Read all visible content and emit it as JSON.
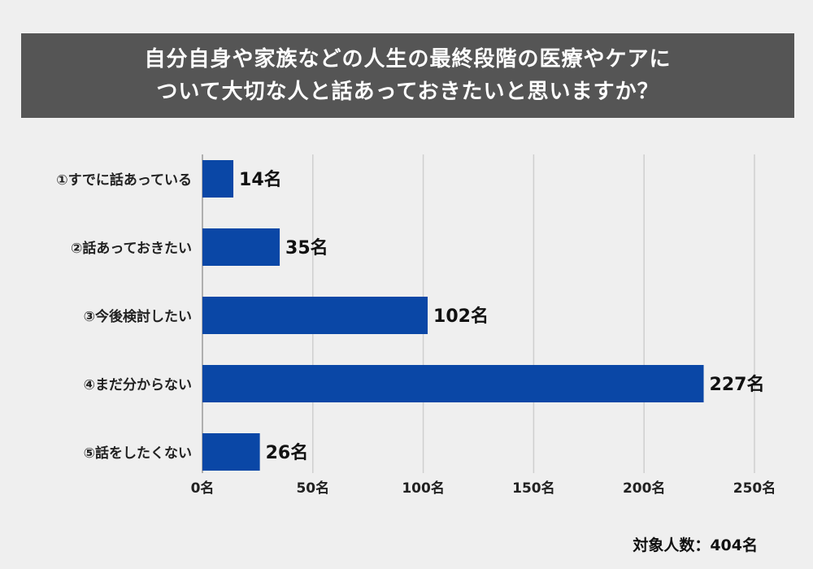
{
  "title": {
    "line1": "自分自身や家族などの人生の最終段階の医療やケアに",
    "line2": "ついて大切な人と話あっておきたいと思いますか？"
  },
  "chart_data": {
    "type": "bar",
    "orientation": "horizontal",
    "categories": [
      "①すでに話あっている",
      "②話あっておきたい",
      "③今後検討したい",
      "④まだ分からない",
      "⑤話をしたくない"
    ],
    "values": [
      14,
      35,
      102,
      227,
      26
    ],
    "value_labels": [
      "14名",
      "35名",
      "102名",
      "227名",
      "26名"
    ],
    "x_ticks": [
      0,
      50,
      100,
      150,
      200,
      250
    ],
    "x_tick_labels": [
      "0名",
      "50名",
      "100名",
      "150名",
      "200名",
      "250名"
    ],
    "xlim": [
      0,
      250
    ],
    "grid": true,
    "bar_color": "#0a47a6"
  },
  "footer": {
    "text": "対象人数：404名"
  }
}
